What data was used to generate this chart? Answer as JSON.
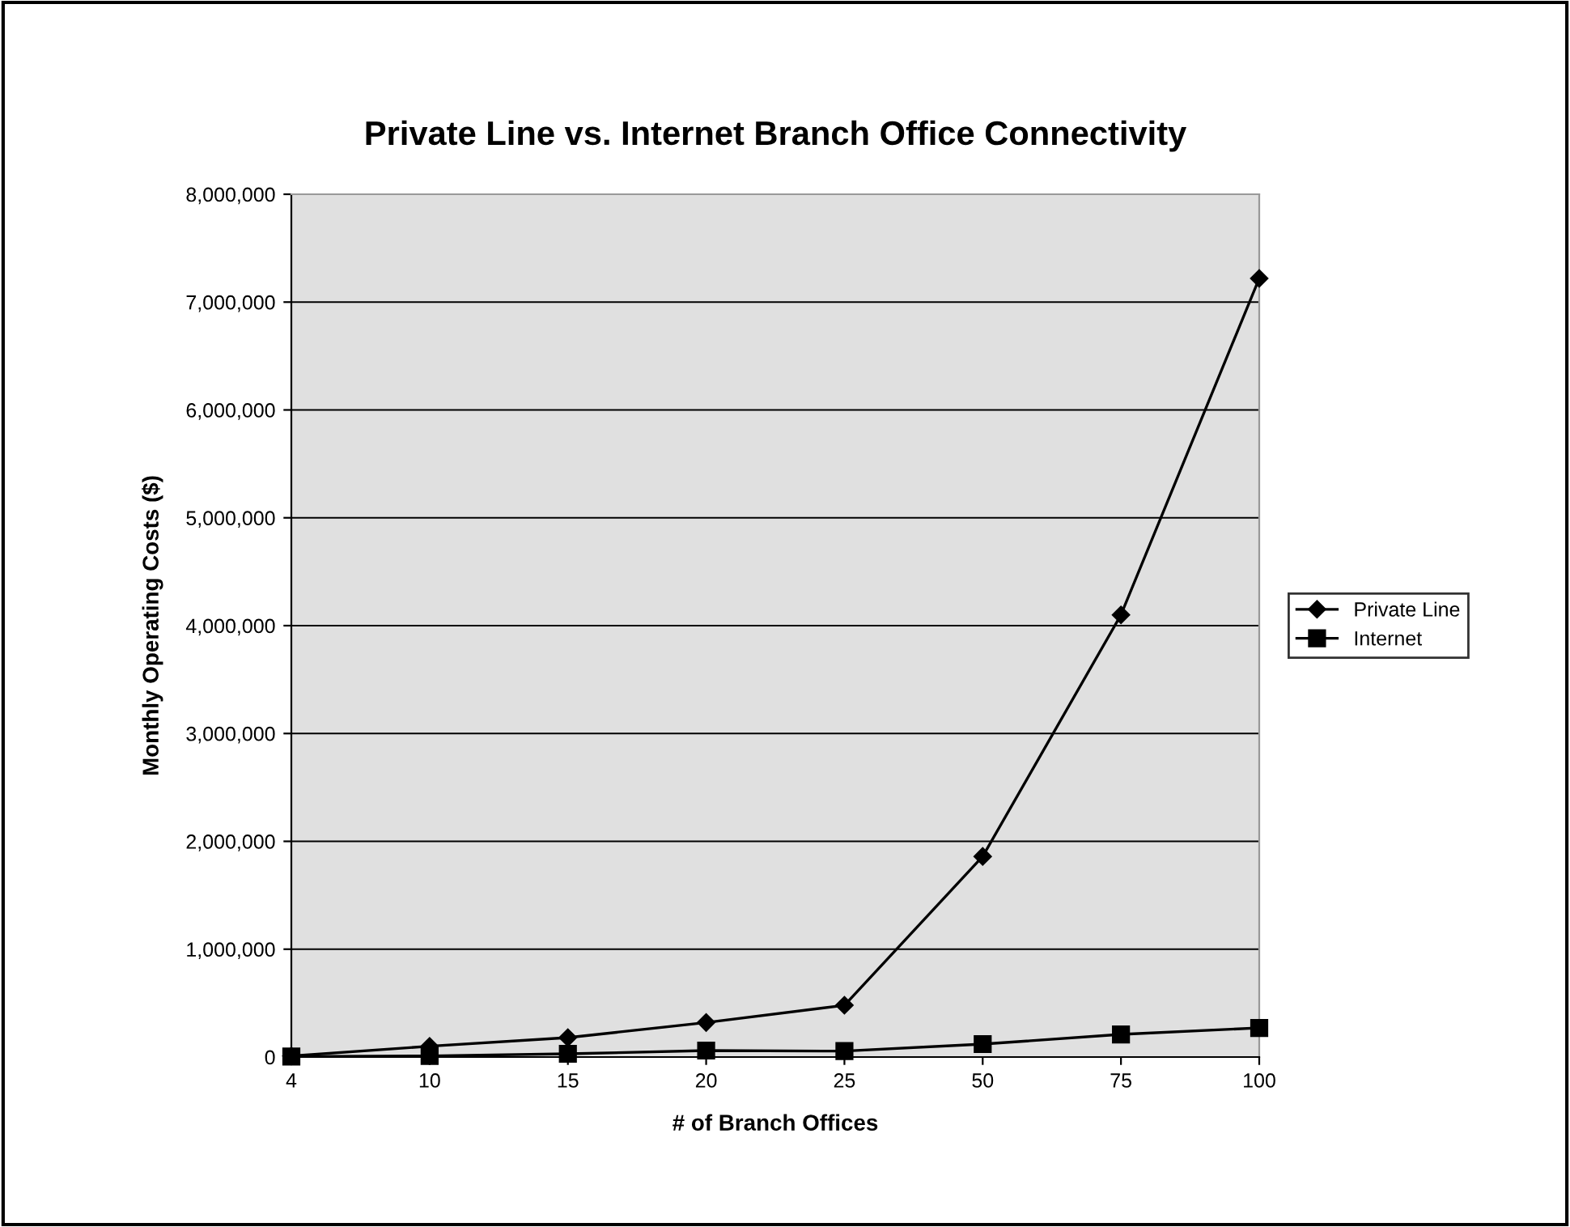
{
  "chart_data": {
    "type": "line",
    "title": "Private Line vs. Internet Branch Office Connectivity",
    "xlabel": "# of Branch Offices",
    "ylabel": "Monthly Operating Costs ($)",
    "categories": [
      "4",
      "10",
      "15",
      "20",
      "25",
      "50",
      "75",
      "100"
    ],
    "series": [
      {
        "name": "Private Line",
        "color": "#000000",
        "marker": "diamond",
        "values": [
          10000,
          100000,
          180000,
          320000,
          480000,
          1860000,
          4100000,
          7220000
        ]
      },
      {
        "name": "Internet",
        "color": "#000000",
        "marker": "square",
        "values": [
          5000,
          10000,
          30000,
          60000,
          55000,
          120000,
          210000,
          270000
        ]
      }
    ],
    "ylim": [
      0,
      8000000
    ],
    "yticks": [
      {
        "value": 0,
        "label": "0"
      },
      {
        "value": 1000000,
        "label": "1,000,000"
      },
      {
        "value": 2000000,
        "label": "2,000,000"
      },
      {
        "value": 3000000,
        "label": "3,000,000"
      },
      {
        "value": 4000000,
        "label": "4,000,000"
      },
      {
        "value": 5000000,
        "label": "5,000,000"
      },
      {
        "value": 6000000,
        "label": "6,000,000"
      },
      {
        "value": 7000000,
        "label": "7,000,000"
      },
      {
        "value": 8000000,
        "label": "8,000,000"
      }
    ],
    "grid": "y",
    "legend": "right",
    "line_style": "solid"
  }
}
